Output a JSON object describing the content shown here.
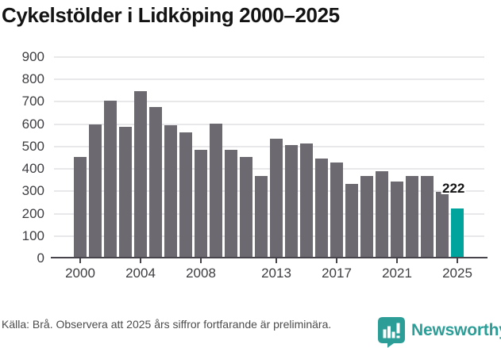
{
  "title": "Cykelstölder i Lidköping 2000–2025",
  "chart_data": {
    "type": "bar",
    "title": "Cykelstölder i Lidköping 2000–2025",
    "x": [
      2000,
      2001,
      2002,
      2003,
      2004,
      2005,
      2006,
      2007,
      2008,
      2009,
      2010,
      2011,
      2012,
      2013,
      2014,
      2015,
      2016,
      2017,
      2018,
      2019,
      2020,
      2021,
      2022,
      2023,
      2024,
      2025
    ],
    "values": [
      453,
      598,
      706,
      588,
      748,
      676,
      596,
      565,
      485,
      604,
      485,
      455,
      370,
      534,
      505,
      514,
      445,
      430,
      332,
      369,
      390,
      344,
      369,
      367,
      297,
      222
    ],
    "ylim": [
      0,
      900
    ],
    "yticks": [
      0,
      100,
      200,
      300,
      400,
      500,
      600,
      700,
      800,
      900
    ],
    "xticks": [
      2000,
      2004,
      2008,
      2013,
      2017,
      2021,
      2025
    ],
    "grid": true,
    "legend": "none",
    "bar_color": "#6c6a70",
    "highlight_color": "#00a49c",
    "highlight_x": 2025,
    "annotations": [
      {
        "x": 2025,
        "label": "222"
      }
    ]
  },
  "footer": {
    "source_note": "Källa: Brå. Observera att 2025 års siffror fortfarande är preliminära.",
    "brand": "Newsworthy"
  },
  "colors": {
    "bar_gray": "#6c6a70",
    "highlight_teal": "#00a49c",
    "brand_teal": "#2d9d97",
    "axis": "#47454b",
    "gridline": "#e8e8ea"
  }
}
